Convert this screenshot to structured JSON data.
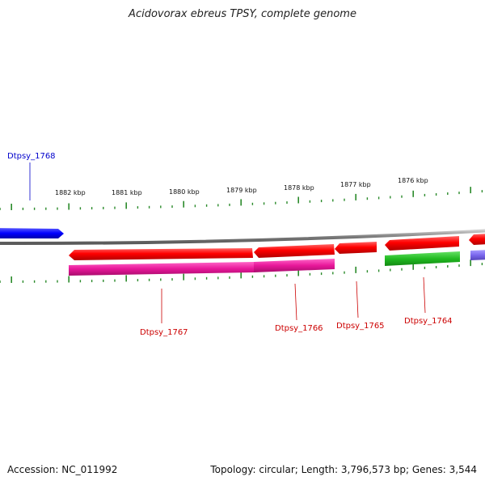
{
  "title": "Acidovorax ebreus TPSY, complete genome",
  "accession": "Accession: NC_011992",
  "summary": "Topology: circular; Length: 3,796,573 bp; Genes: 3,544",
  "ticks": [
    "1882 kbp",
    "1881 kbp",
    "1880 kbp",
    "1879 kbp",
    "1878 kbp",
    "1877 kbp",
    "1876 kbp"
  ],
  "genes": [
    {
      "name": "Dtpsy_1768",
      "color": "#0000ee"
    },
    {
      "name": "Dtpsy_1767",
      "color": "#cc0000"
    },
    {
      "name": "Dtpsy_1766",
      "color": "#cc0000"
    },
    {
      "name": "Dtpsy_1765",
      "color": "#cc0000"
    },
    {
      "name": "Dtpsy_1764",
      "color": "#cc0000"
    }
  ],
  "colors": {
    "cds": "#ee0000",
    "gene": "#e8189a",
    "rna": "#22bb22",
    "other": "#7b68ee",
    "forward": "#0000ff",
    "tick": "#2a8a2a",
    "backbone": "#888888"
  }
}
